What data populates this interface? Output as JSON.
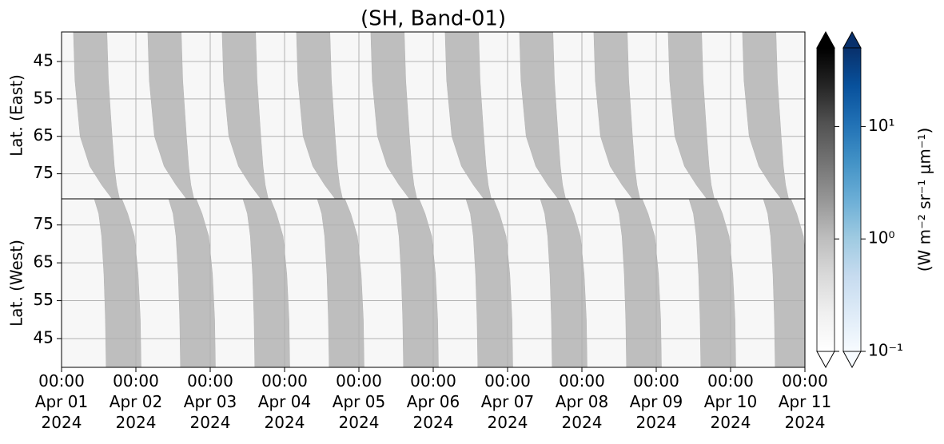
{
  "chart_data": {
    "type": "heatmap",
    "title": "(SH, Band-01)",
    "xlim": [
      0,
      10
    ],
    "xticks": [
      {
        "value": 0,
        "label": "00:00\nApr 01\n2024"
      },
      {
        "value": 1,
        "label": "00:00\nApr 02\n2024"
      },
      {
        "value": 2,
        "label": "00:00\nApr 03\n2024"
      },
      {
        "value": 3,
        "label": "00:00\nApr 04\n2024"
      },
      {
        "value": 4,
        "label": "00:00\nApr 05\n2024"
      },
      {
        "value": 5,
        "label": "00:00\nApr 06\n2024"
      },
      {
        "value": 6,
        "label": "00:00\nApr 07\n2024"
      },
      {
        "value": 7,
        "label": "00:00\nApr 08\n2024"
      },
      {
        "value": 8,
        "label": "00:00\nApr 09\n2024"
      },
      {
        "value": 9,
        "label": "00:00\nApr 10\n2024"
      },
      {
        "value": 10,
        "label": "00:00\nApr 11\n2024"
      }
    ],
    "grid": true,
    "panels": [
      {
        "ylabel": "Lat. (East)",
        "ylim": [
          81.7,
          37.1
        ],
        "yticks": [
          45,
          55,
          65,
          75
        ],
        "background_value": 0.15,
        "stripe_value": 1,
        "stripe_starts": [
          0.16,
          1.16,
          2.16,
          3.16,
          4.16,
          5.16,
          6.16,
          7.16,
          8.16,
          9.16
        ],
        "profile": [
          [
            37.1,
            0,
            0.45
          ],
          [
            50,
            0.02,
            0.47
          ],
          [
            65,
            0.09,
            0.52
          ],
          [
            73,
            0.22,
            0.55
          ],
          [
            78,
            0.38,
            0.58
          ],
          [
            81.7,
            0.52,
            0.62
          ]
        ]
      },
      {
        "ylabel": "Lat. (West)",
        "ylim": [
          37.4,
          81.9
        ],
        "yticks": [
          75,
          65,
          55,
          45
        ],
        "background_value": 0.15,
        "stripe_value": 1,
        "stripe_starts": [
          0.44,
          1.44,
          2.44,
          3.44,
          4.44,
          5.44,
          6.44,
          7.44,
          8.44,
          9.44
        ],
        "profile": [
          [
            81.9,
            0,
            0.37
          ],
          [
            78,
            0.06,
            0.45
          ],
          [
            72,
            0.1,
            0.54
          ],
          [
            62,
            0.13,
            0.59
          ],
          [
            50,
            0.15,
            0.62
          ],
          [
            37.4,
            0.16,
            0.63
          ]
        ]
      }
    ],
    "clim": [
      0.1,
      50
    ],
    "log_scale": true,
    "colorbars": [
      {
        "colors": [
          "#ffffff",
          "#f0f0f0",
          "#d9d9d9",
          "#bdbdbd",
          "#969696",
          "#737373",
          "#525252",
          "#252525",
          "#000000"
        ]
      },
      {
        "colors": [
          "#f7fbff",
          "#deebf7",
          "#c6dbef",
          "#9ecae1",
          "#6baed6",
          "#4292c6",
          "#2171b5",
          "#08519c",
          "#08306b"
        ]
      }
    ],
    "colorbar_ticks": [
      {
        "value": 0.1,
        "label": "10⁻¹"
      },
      {
        "value": 1,
        "label": "10⁰"
      },
      {
        "value": 10,
        "label": "10¹"
      }
    ],
    "colorbar_label": "(W m⁻² sr⁻¹ μm⁻¹)"
  }
}
